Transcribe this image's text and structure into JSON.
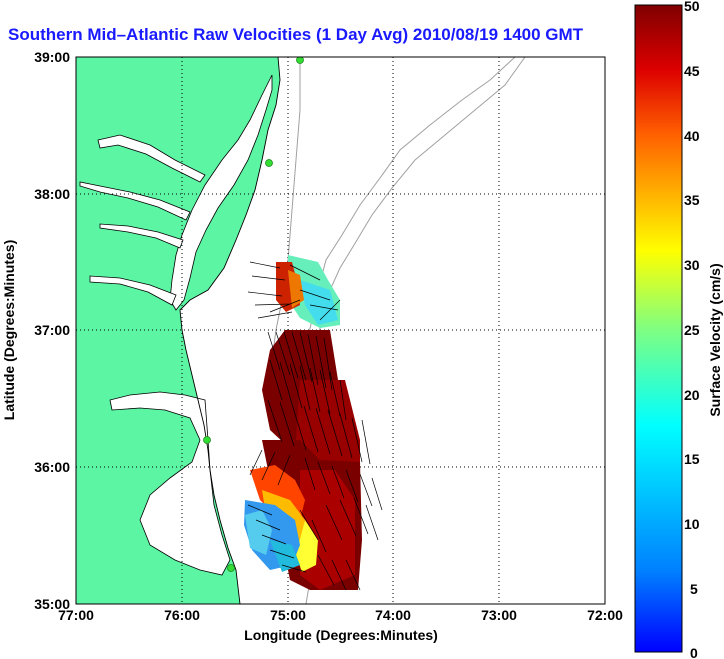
{
  "title": "Southern Mid–Atlantic Raw Velocities (1 Day Avg) 2010/08/19 1400 GMT",
  "map": {
    "xlabel": "Longitude (Degrees:Minutes)",
    "ylabel": "Latitude (Degrees:Minutes)",
    "lon_ticks": [
      "77:00",
      "76:00",
      "75:00",
      "74:00",
      "73:00",
      "72:00"
    ],
    "lat_ticks": [
      "39:00",
      "38:00",
      "37:00",
      "36:00",
      "35:00"
    ],
    "lon_range": [
      -77,
      -72
    ],
    "lat_range": [
      35,
      39
    ],
    "grid": true,
    "colors": {
      "land": "#5cf5a4",
      "coast": "#000000",
      "bathymetry": "#a0a0a0",
      "stations": "#33dd33",
      "vectors": "#000000"
    }
  },
  "colorbar": {
    "label": "Surface Velocity (cm/s)",
    "ticks": [
      "50",
      "45",
      "40",
      "35",
      "30",
      "25",
      "20",
      "15",
      "10",
      "5",
      "0"
    ],
    "min": 0,
    "max": 50,
    "colormap": [
      "#0000ff",
      "#0080ff",
      "#00ffff",
      "#80ff80",
      "#ffff00",
      "#ff8000",
      "#ff0000",
      "#800000"
    ]
  }
}
